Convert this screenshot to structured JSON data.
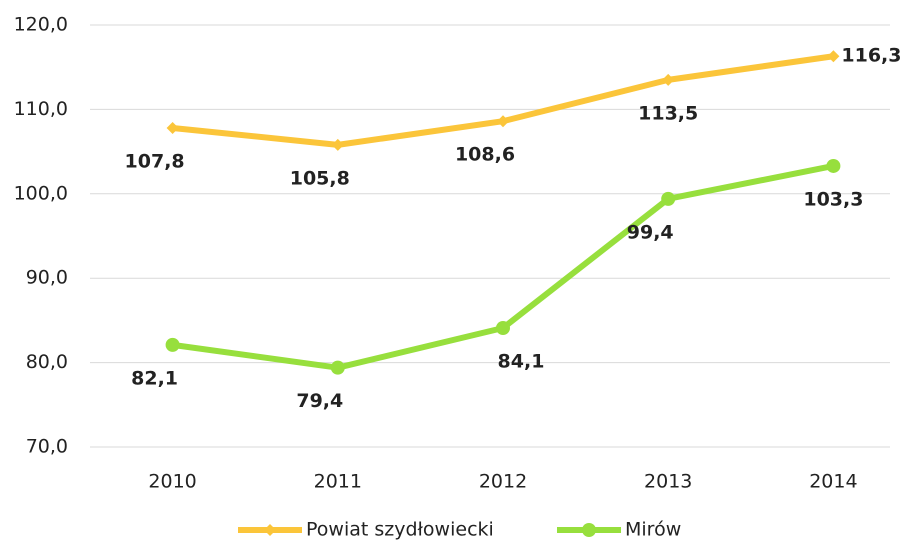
{
  "chart_data": {
    "type": "line",
    "categories": [
      "2010",
      "2011",
      "2012",
      "2013",
      "2014"
    ],
    "series": [
      {
        "name": "Powiat szydłowiecki",
        "color": "#fbc53a",
        "values": [
          107.8,
          105.8,
          108.6,
          113.5,
          116.3
        ],
        "value_labels": [
          "107,8",
          "105,8",
          "108,6",
          "113,5",
          "116,3"
        ]
      },
      {
        "name": "Mirów",
        "color": "#97df3d",
        "values": [
          82.1,
          79.4,
          84.1,
          99.4,
          103.3
        ],
        "value_labels": [
          "82,1",
          "79,4",
          "84,1",
          "99,4",
          "103,3"
        ]
      }
    ],
    "ylim": [
      70,
      120
    ],
    "yticks": [
      {
        "value": 70,
        "label": "70,0"
      },
      {
        "value": 80,
        "label": "80,0"
      },
      {
        "value": 90,
        "label": "90,0"
      },
      {
        "value": 100,
        "label": "100,0"
      },
      {
        "value": 110,
        "label": "110,0"
      },
      {
        "value": 120,
        "label": "120,0"
      }
    ],
    "grid": true,
    "legend": "bottom"
  }
}
